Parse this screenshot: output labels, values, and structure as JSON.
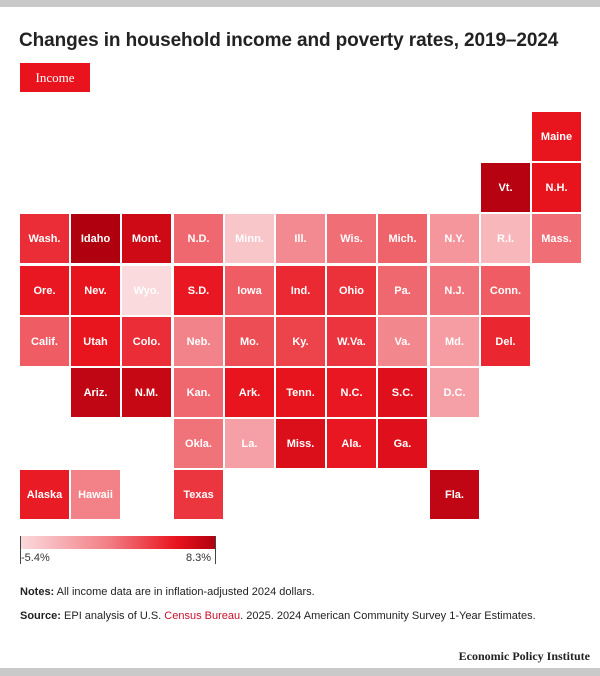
{
  "title": "Changes in household income and poverty rates, 2019–2024",
  "metric_button": "Income",
  "legend": {
    "min_label": "-5.4%",
    "max_label": "8.3%",
    "min_value": -5.4,
    "max_value": 8.3
  },
  "colors": {
    "accent": "#e8131d",
    "light": "#fadadd",
    "dark": "#b00010"
  },
  "notes": {
    "label": "Notes:",
    "text": " All income data are in inflation-adjusted 2024 dollars."
  },
  "source": {
    "label": "Source:",
    "pre": " EPI analysis of U.S. ",
    "link": "Census Bureau",
    "post": ". 2025. 2024 American Community Survey 1-Year Estimates."
  },
  "brand": "Economic Policy Institute",
  "states": [
    {
      "abbr": "Maine",
      "col": 10,
      "row": 0,
      "value": 5.5
    },
    {
      "abbr": "Vt.",
      "col": 9,
      "row": 1,
      "value": 8.0
    },
    {
      "abbr": "N.H.",
      "col": 10,
      "row": 1,
      "value": 5.6
    },
    {
      "abbr": "Wash.",
      "col": 0,
      "row": 2,
      "value": 4.4
    },
    {
      "abbr": "Idaho",
      "col": 1,
      "row": 2,
      "value": 8.3
    },
    {
      "abbr": "Mont.",
      "col": 2,
      "row": 2,
      "value": 6.8
    },
    {
      "abbr": "N.D.",
      "col": 3,
      "row": 2,
      "value": 1.8
    },
    {
      "abbr": "Minn.",
      "col": 4,
      "row": 2,
      "value": -4.0
    },
    {
      "abbr": "Ill.",
      "col": 5,
      "row": 2,
      "value": 0.0
    },
    {
      "abbr": "Wis.",
      "col": 6,
      "row": 2,
      "value": 1.5
    },
    {
      "abbr": "Mich.",
      "col": 7,
      "row": 2,
      "value": 2.0
    },
    {
      "abbr": "N.Y.",
      "col": 8,
      "row": 2,
      "value": -0.8
    },
    {
      "abbr": "R.I.",
      "col": 9,
      "row": 2,
      "value": -3.0
    },
    {
      "abbr": "Mass.",
      "col": 10,
      "row": 2,
      "value": 1.5
    },
    {
      "abbr": "Ore.",
      "col": 0,
      "row": 3,
      "value": 5.4
    },
    {
      "abbr": "Nev.",
      "col": 1,
      "row": 3,
      "value": 5.6
    },
    {
      "abbr": "Wyo.",
      "col": 2,
      "row": 3,
      "value": -5.4
    },
    {
      "abbr": "S.D.",
      "col": 3,
      "row": 3,
      "value": 5.4
    },
    {
      "abbr": "Iowa",
      "col": 4,
      "row": 3,
      "value": 2.3
    },
    {
      "abbr": "Ind.",
      "col": 5,
      "row": 3,
      "value": 4.6
    },
    {
      "abbr": "Ohio",
      "col": 6,
      "row": 3,
      "value": 4.2
    },
    {
      "abbr": "Pa.",
      "col": 7,
      "row": 3,
      "value": 1.8
    },
    {
      "abbr": "N.J.",
      "col": 8,
      "row": 3,
      "value": 1.2
    },
    {
      "abbr": "Conn.",
      "col": 9,
      "row": 3,
      "value": 2.3
    },
    {
      "abbr": "Calif.",
      "col": 0,
      "row": 4,
      "value": 2.3
    },
    {
      "abbr": "Utah",
      "col": 1,
      "row": 4,
      "value": 5.5
    },
    {
      "abbr": "Colo.",
      "col": 2,
      "row": 4,
      "value": 4.4
    },
    {
      "abbr": "Neb.",
      "col": 3,
      "row": 4,
      "value": 0.5
    },
    {
      "abbr": "Mo.",
      "col": 4,
      "row": 4,
      "value": 3.0
    },
    {
      "abbr": "Ky.",
      "col": 5,
      "row": 4,
      "value": 3.4
    },
    {
      "abbr": "W.Va.",
      "col": 6,
      "row": 4,
      "value": 4.1
    },
    {
      "abbr": "Va.",
      "col": 7,
      "row": 4,
      "value": 0.2
    },
    {
      "abbr": "Md.",
      "col": 8,
      "row": 4,
      "value": -1.3
    },
    {
      "abbr": "Del.",
      "col": 9,
      "row": 4,
      "value": 4.7
    },
    {
      "abbr": "Ariz.",
      "col": 1,
      "row": 5,
      "value": 7.5
    },
    {
      "abbr": "N.M.",
      "col": 2,
      "row": 5,
      "value": 7.2
    },
    {
      "abbr": "Kan.",
      "col": 3,
      "row": 5,
      "value": 1.8
    },
    {
      "abbr": "Ark.",
      "col": 4,
      "row": 5,
      "value": 5.5
    },
    {
      "abbr": "Tenn.",
      "col": 5,
      "row": 5,
      "value": 5.6
    },
    {
      "abbr": "N.C.",
      "col": 6,
      "row": 5,
      "value": 5.4
    },
    {
      "abbr": "S.C.",
      "col": 7,
      "row": 5,
      "value": 6.0
    },
    {
      "abbr": "D.C.",
      "col": 8,
      "row": 5,
      "value": -1.5
    },
    {
      "abbr": "Okla.",
      "col": 3,
      "row": 6,
      "value": 1.3
    },
    {
      "abbr": "La.",
      "col": 4,
      "row": 6,
      "value": -1.5
    },
    {
      "abbr": "Miss.",
      "col": 5,
      "row": 6,
      "value": 6.2
    },
    {
      "abbr": "Ala.",
      "col": 6,
      "row": 6,
      "value": 5.4
    },
    {
      "abbr": "Ga.",
      "col": 7,
      "row": 6,
      "value": 6.0
    },
    {
      "abbr": "Alaska",
      "col": 0,
      "row": 7,
      "value": 5.2
    },
    {
      "abbr": "Hawaii",
      "col": 1,
      "row": 7,
      "value": 0.6
    },
    {
      "abbr": "Texas",
      "col": 3,
      "row": 7,
      "value": 4.0
    },
    {
      "abbr": "Fla.",
      "col": 8,
      "row": 7,
      "value": 7.5
    }
  ]
}
